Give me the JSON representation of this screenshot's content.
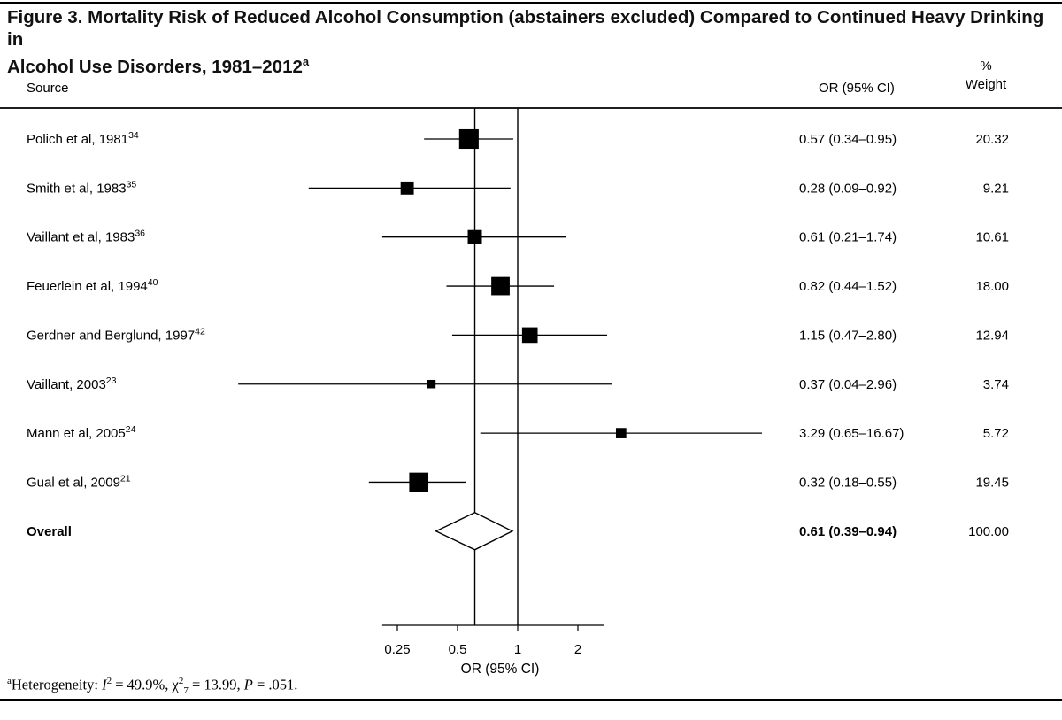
{
  "figure": {
    "title_line1": "Figure 3. Mortality Risk of Reduced Alcohol Consumption (abstainers excluded) Compared to Continued Heavy Drinking in",
    "title_line2": "Alcohol Use Disorders, 1981–2012",
    "title_sup": "a"
  },
  "table": {
    "source_header": "Source",
    "or_header": "OR (95% CI)",
    "weight_header_pct": "%",
    "weight_header_label": "Weight"
  },
  "chart_data": {
    "type": "forest",
    "x_scale": "log2",
    "x_ticks": [
      0.25,
      0.5,
      1,
      2
    ],
    "x_tick_labels": [
      "0.25",
      "0.5",
      "1",
      "2"
    ],
    "x_axis_line_range": [
      0.21,
      2.7
    ],
    "xlabel": "OR (95% CI)",
    "null_line": 1,
    "overall_line": 0.61,
    "grid": false,
    "studies": [
      {
        "label": "Polich et al, 1981",
        "ref": "34",
        "or": 0.57,
        "lo": 0.34,
        "hi": 0.95,
        "weight": 20.32,
        "or_text": "0.57 (0.34–0.95)",
        "weight_text": "20.32"
      },
      {
        "label": "Smith et al, 1983",
        "ref": "35",
        "or": 0.28,
        "lo": 0.09,
        "hi": 0.92,
        "weight": 9.21,
        "or_text": "0.28 (0.09–0.92)",
        "weight_text": "9.21"
      },
      {
        "label": "Vaillant et al, 1983",
        "ref": "36",
        "or": 0.61,
        "lo": 0.21,
        "hi": 1.74,
        "weight": 10.61,
        "or_text": "0.61 (0.21–1.74)",
        "weight_text": "10.61"
      },
      {
        "label": "Feuerlein et al, 1994",
        "ref": "40",
        "or": 0.82,
        "lo": 0.44,
        "hi": 1.52,
        "weight": 18.0,
        "or_text": "0.82 (0.44–1.52)",
        "weight_text": "18.00"
      },
      {
        "label": "Gerdner and Berglund, 1997",
        "ref": "42",
        "or": 1.15,
        "lo": 0.47,
        "hi": 2.8,
        "weight": 12.94,
        "or_text": "1.15 (0.47–2.80)",
        "weight_text": "12.94"
      },
      {
        "label": "Vaillant, 2003",
        "ref": "23",
        "or": 0.37,
        "lo": 0.04,
        "hi": 2.96,
        "weight": 3.74,
        "or_text": "0.37 (0.04–2.96)",
        "weight_text": "3.74"
      },
      {
        "label": "Mann et al, 2005",
        "ref": "24",
        "or": 3.29,
        "lo": 0.65,
        "hi": 16.67,
        "weight": 5.72,
        "or_text": "3.29 (0.65–16.67)",
        "weight_text": "5.72"
      },
      {
        "label": "Gual et al, 2009",
        "ref": "21",
        "or": 0.32,
        "lo": 0.18,
        "hi": 0.55,
        "weight": 19.45,
        "or_text": "0.32 (0.18–0.55)",
        "weight_text": "19.45"
      }
    ],
    "overall": {
      "label": "Overall",
      "or": 0.61,
      "lo": 0.39,
      "hi": 0.94,
      "weight": 100.0,
      "or_text": "0.61 (0.39–0.94)",
      "weight_text": "100.00"
    }
  },
  "footnote": {
    "segments": [
      {
        "t": "a",
        "s": "sup"
      },
      {
        "t": "Heterogeneity: ",
        "s": ""
      },
      {
        "t": "I",
        "s": "i"
      },
      {
        "t": "2",
        "s": "sup"
      },
      {
        "t": " = 49.9%, ",
        "s": ""
      },
      {
        "t": "χ",
        "s": ""
      },
      {
        "t": "2",
        "s": "sup"
      },
      {
        "t": "7",
        "s": "sub"
      },
      {
        "t": " = 13.99, ",
        "s": ""
      },
      {
        "t": "P",
        "s": "i"
      },
      {
        "t": " = .051.",
        "s": ""
      }
    ]
  }
}
